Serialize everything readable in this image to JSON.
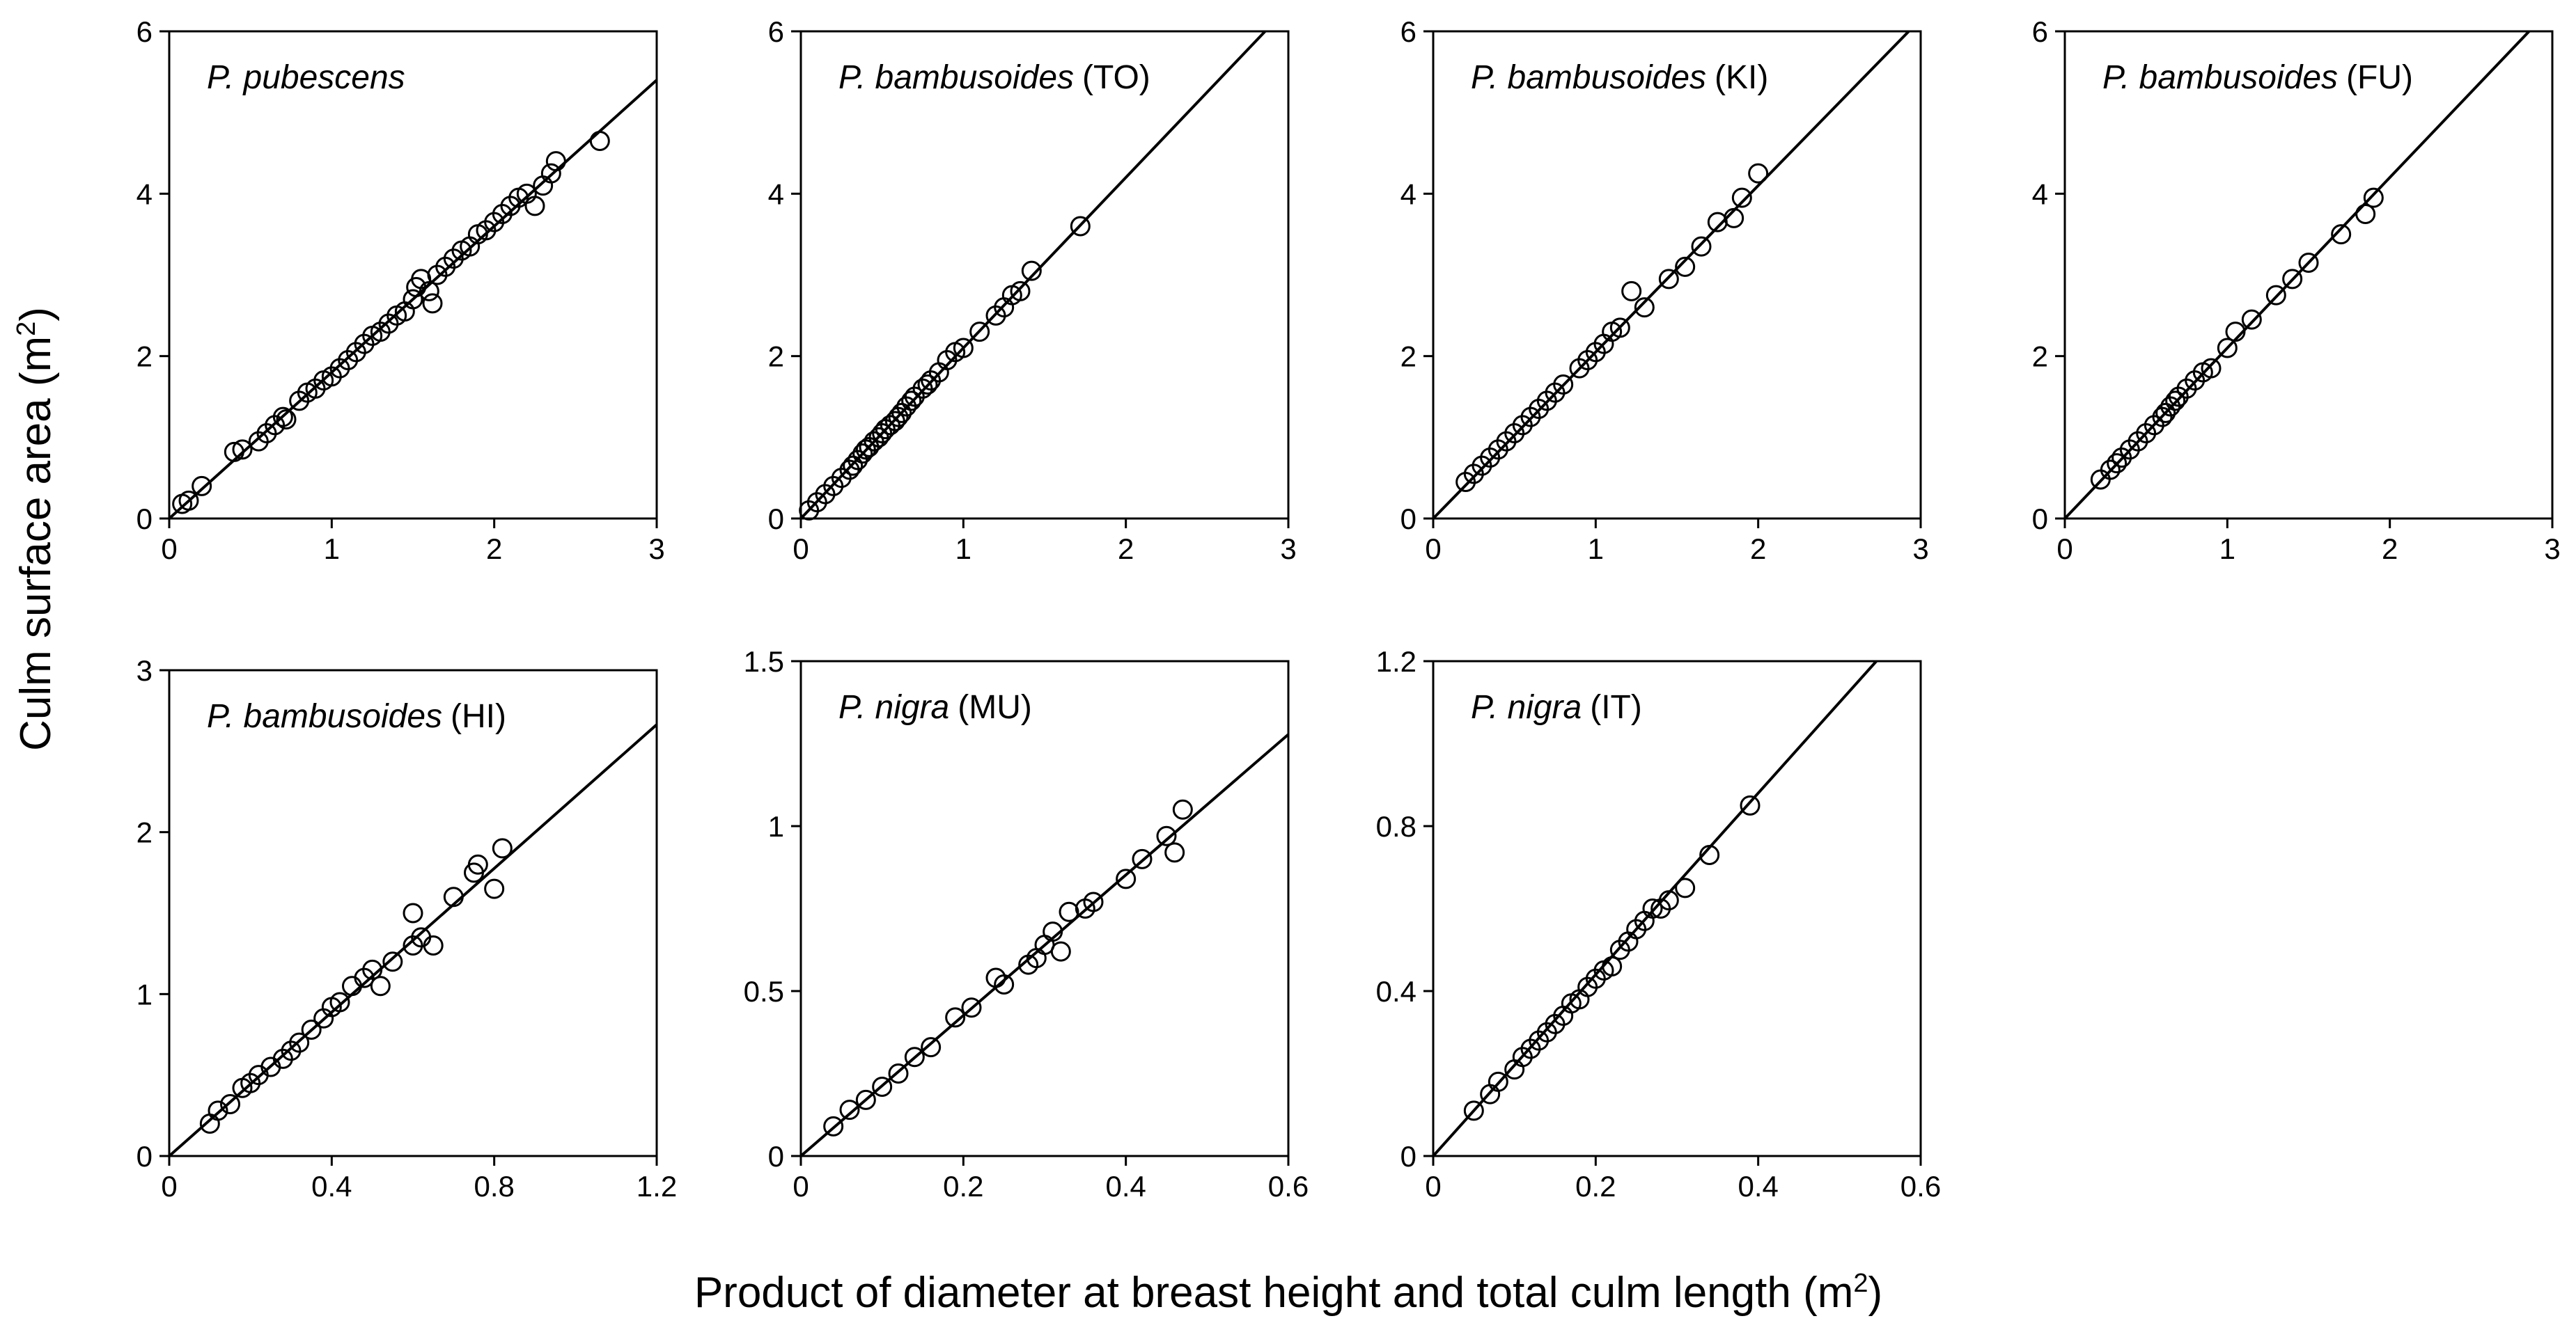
{
  "figure": {
    "ylabel": {
      "text": "Culm surface area (m",
      "sup": "2",
      "close": ")"
    },
    "xlabel": {
      "text": "Product of diameter at breast height and total culm length (m",
      "sup": "2",
      "close": ")"
    }
  },
  "chart_data": [
    {
      "type": "scatter",
      "title": {
        "species": "P. pubescens",
        "site": ""
      },
      "xlim": [
        0,
        3
      ],
      "ylim": [
        0,
        6
      ],
      "xticks": [
        0,
        1,
        2,
        3
      ],
      "yticks": [
        0,
        2,
        4,
        6
      ],
      "xtick_labels": [
        "0",
        "1",
        "2",
        "3"
      ],
      "ytick_labels": [
        "0",
        "2",
        "4",
        "6"
      ],
      "fit_slope": 1.8,
      "points": [
        [
          0.08,
          0.18
        ],
        [
          0.12,
          0.22
        ],
        [
          0.2,
          0.4
        ],
        [
          0.4,
          0.82
        ],
        [
          0.45,
          0.85
        ],
        [
          0.55,
          0.95
        ],
        [
          0.6,
          1.05
        ],
        [
          0.65,
          1.15
        ],
        [
          0.7,
          1.25
        ],
        [
          0.72,
          1.22
        ],
        [
          0.8,
          1.45
        ],
        [
          0.85,
          1.55
        ],
        [
          0.9,
          1.6
        ],
        [
          0.95,
          1.7
        ],
        [
          1.0,
          1.75
        ],
        [
          1.05,
          1.85
        ],
        [
          1.1,
          1.95
        ],
        [
          1.15,
          2.05
        ],
        [
          1.2,
          2.15
        ],
        [
          1.25,
          2.25
        ],
        [
          1.3,
          2.3
        ],
        [
          1.35,
          2.4
        ],
        [
          1.4,
          2.5
        ],
        [
          1.45,
          2.55
        ],
        [
          1.5,
          2.7
        ],
        [
          1.52,
          2.85
        ],
        [
          1.55,
          2.95
        ],
        [
          1.6,
          2.8
        ],
        [
          1.62,
          2.65
        ],
        [
          1.65,
          3.0
        ],
        [
          1.7,
          3.1
        ],
        [
          1.75,
          3.2
        ],
        [
          1.8,
          3.3
        ],
        [
          1.85,
          3.35
        ],
        [
          1.9,
          3.5
        ],
        [
          1.95,
          3.55
        ],
        [
          2.0,
          3.65
        ],
        [
          2.05,
          3.75
        ],
        [
          2.1,
          3.85
        ],
        [
          2.15,
          3.95
        ],
        [
          2.2,
          4.0
        ],
        [
          2.25,
          3.85
        ],
        [
          2.3,
          4.1
        ],
        [
          2.35,
          4.25
        ],
        [
          2.38,
          4.4
        ],
        [
          2.65,
          4.65
        ]
      ]
    },
    {
      "type": "scatter",
      "title": {
        "species": "P. bambusoides",
        "site": "(TO)"
      },
      "xlim": [
        0,
        3
      ],
      "ylim": [
        0,
        6
      ],
      "xticks": [
        0,
        1,
        2,
        3
      ],
      "yticks": [
        0,
        2,
        4,
        6
      ],
      "xtick_labels": [
        "0",
        "1",
        "2",
        "3"
      ],
      "ytick_labels": [
        "0",
        "2",
        "4",
        "6"
      ],
      "fit_slope": 2.1,
      "points": [
        [
          0.05,
          0.1
        ],
        [
          0.1,
          0.2
        ],
        [
          0.15,
          0.3
        ],
        [
          0.2,
          0.4
        ],
        [
          0.25,
          0.5
        ],
        [
          0.3,
          0.6
        ],
        [
          0.32,
          0.65
        ],
        [
          0.35,
          0.72
        ],
        [
          0.38,
          0.8
        ],
        [
          0.4,
          0.85
        ],
        [
          0.42,
          0.88
        ],
        [
          0.45,
          0.95
        ],
        [
          0.48,
          1.0
        ],
        [
          0.5,
          1.05
        ],
        [
          0.52,
          1.1
        ],
        [
          0.55,
          1.15
        ],
        [
          0.58,
          1.2
        ],
        [
          0.6,
          1.25
        ],
        [
          0.62,
          1.3
        ],
        [
          0.65,
          1.38
        ],
        [
          0.68,
          1.45
        ],
        [
          0.7,
          1.5
        ],
        [
          0.75,
          1.6
        ],
        [
          0.78,
          1.65
        ],
        [
          0.8,
          1.7
        ],
        [
          0.85,
          1.8
        ],
        [
          0.9,
          1.95
        ],
        [
          0.95,
          2.05
        ],
        [
          1.0,
          2.1
        ],
        [
          1.1,
          2.3
        ],
        [
          1.2,
          2.5
        ],
        [
          1.25,
          2.6
        ],
        [
          1.3,
          2.75
        ],
        [
          1.35,
          2.8
        ],
        [
          1.42,
          3.05
        ],
        [
          1.72,
          3.6
        ]
      ]
    },
    {
      "type": "scatter",
      "title": {
        "species": "P. bambusoides",
        "site": "(KI)"
      },
      "xlim": [
        0,
        3
      ],
      "ylim": [
        0,
        6
      ],
      "xticks": [
        0,
        1,
        2,
        3
      ],
      "yticks": [
        0,
        2,
        4,
        6
      ],
      "xtick_labels": [
        "0",
        "1",
        "2",
        "3"
      ],
      "ytick_labels": [
        "0",
        "2",
        "4",
        "6"
      ],
      "fit_slope": 2.05,
      "points": [
        [
          0.2,
          0.45
        ],
        [
          0.25,
          0.55
        ],
        [
          0.3,
          0.65
        ],
        [
          0.35,
          0.75
        ],
        [
          0.4,
          0.85
        ],
        [
          0.45,
          0.95
        ],
        [
          0.5,
          1.05
        ],
        [
          0.55,
          1.15
        ],
        [
          0.6,
          1.25
        ],
        [
          0.65,
          1.35
        ],
        [
          0.7,
          1.45
        ],
        [
          0.75,
          1.55
        ],
        [
          0.8,
          1.65
        ],
        [
          0.9,
          1.85
        ],
        [
          0.95,
          1.95
        ],
        [
          1.0,
          2.05
        ],
        [
          1.05,
          2.15
        ],
        [
          1.1,
          2.3
        ],
        [
          1.15,
          2.35
        ],
        [
          1.22,
          2.8
        ],
        [
          1.3,
          2.6
        ],
        [
          1.45,
          2.95
        ],
        [
          1.55,
          3.1
        ],
        [
          1.65,
          3.35
        ],
        [
          1.75,
          3.65
        ],
        [
          1.85,
          3.7
        ],
        [
          1.9,
          3.95
        ],
        [
          2.0,
          4.25
        ]
      ]
    },
    {
      "type": "scatter",
      "title": {
        "species": "P. bambusoides",
        "site": "(FU)"
      },
      "xlim": [
        0,
        3
      ],
      "ylim": [
        0,
        6
      ],
      "xticks": [
        0,
        1,
        2,
        3
      ],
      "yticks": [
        0,
        2,
        4,
        6
      ],
      "xtick_labels": [
        "0",
        "1",
        "2",
        "3"
      ],
      "ytick_labels": [
        "0",
        "2",
        "4",
        "6"
      ],
      "fit_slope": 2.1,
      "points": [
        [
          0.22,
          0.48
        ],
        [
          0.28,
          0.6
        ],
        [
          0.32,
          0.68
        ],
        [
          0.35,
          0.75
        ],
        [
          0.4,
          0.85
        ],
        [
          0.45,
          0.95
        ],
        [
          0.5,
          1.05
        ],
        [
          0.55,
          1.15
        ],
        [
          0.6,
          1.25
        ],
        [
          0.62,
          1.3
        ],
        [
          0.65,
          1.38
        ],
        [
          0.68,
          1.45
        ],
        [
          0.7,
          1.5
        ],
        [
          0.75,
          1.6
        ],
        [
          0.8,
          1.7
        ],
        [
          0.85,
          1.8
        ],
        [
          0.9,
          1.85
        ],
        [
          1.0,
          2.1
        ],
        [
          1.05,
          2.3
        ],
        [
          1.15,
          2.45
        ],
        [
          1.3,
          2.75
        ],
        [
          1.4,
          2.95
        ],
        [
          1.5,
          3.15
        ],
        [
          1.7,
          3.5
        ],
        [
          1.85,
          3.75
        ],
        [
          1.9,
          3.95
        ]
      ]
    },
    {
      "type": "scatter",
      "title": {
        "species": "P. bambusoides",
        "site": "(HI)"
      },
      "xlim": [
        0,
        1.2
      ],
      "ylim": [
        0,
        3
      ],
      "xticks": [
        0,
        0.4,
        0.8,
        1.2
      ],
      "yticks": [
        0,
        1,
        2,
        3
      ],
      "xtick_labels": [
        "0",
        "0.4",
        "0.8",
        "1.2"
      ],
      "ytick_labels": [
        "0",
        "1",
        "2",
        "3"
      ],
      "fit_slope": 2.22,
      "points": [
        [
          0.1,
          0.2
        ],
        [
          0.12,
          0.28
        ],
        [
          0.15,
          0.32
        ],
        [
          0.18,
          0.42
        ],
        [
          0.2,
          0.45
        ],
        [
          0.22,
          0.5
        ],
        [
          0.25,
          0.55
        ],
        [
          0.28,
          0.6
        ],
        [
          0.3,
          0.65
        ],
        [
          0.32,
          0.7
        ],
        [
          0.35,
          0.78
        ],
        [
          0.38,
          0.85
        ],
        [
          0.4,
          0.92
        ],
        [
          0.42,
          0.95
        ],
        [
          0.45,
          1.05
        ],
        [
          0.48,
          1.1
        ],
        [
          0.5,
          1.15
        ],
        [
          0.52,
          1.05
        ],
        [
          0.55,
          1.2
        ],
        [
          0.6,
          1.3
        ],
        [
          0.62,
          1.35
        ],
        [
          0.6,
          1.5
        ],
        [
          0.65,
          1.3
        ],
        [
          0.7,
          1.6
        ],
        [
          0.75,
          1.75
        ],
        [
          0.76,
          1.8
        ],
        [
          0.8,
          1.65
        ],
        [
          0.82,
          1.9
        ]
      ]
    },
    {
      "type": "scatter",
      "title": {
        "species": "P. nigra",
        "site": "(MU)"
      },
      "xlim": [
        0,
        0.6
      ],
      "ylim": [
        0,
        1.5
      ],
      "xticks": [
        0,
        0.2,
        0.4,
        0.6
      ],
      "yticks": [
        0,
        0.5,
        1,
        1.5
      ],
      "xtick_labels": [
        "0",
        "0.2",
        "0.4",
        "0.6"
      ],
      "ytick_labels": [
        "0",
        "0.5",
        "1",
        "1.5"
      ],
      "fit_slope": 2.13,
      "points": [
        [
          0.04,
          0.09
        ],
        [
          0.06,
          0.14
        ],
        [
          0.08,
          0.17
        ],
        [
          0.1,
          0.21
        ],
        [
          0.12,
          0.25
        ],
        [
          0.14,
          0.3
        ],
        [
          0.16,
          0.33
        ],
        [
          0.19,
          0.42
        ],
        [
          0.21,
          0.45
        ],
        [
          0.24,
          0.54
        ],
        [
          0.25,
          0.52
        ],
        [
          0.28,
          0.58
        ],
        [
          0.29,
          0.6
        ],
        [
          0.3,
          0.64
        ],
        [
          0.31,
          0.68
        ],
        [
          0.32,
          0.62
        ],
        [
          0.33,
          0.74
        ],
        [
          0.35,
          0.75
        ],
        [
          0.36,
          0.77
        ],
        [
          0.4,
          0.84
        ],
        [
          0.42,
          0.9
        ],
        [
          0.45,
          0.97
        ],
        [
          0.46,
          0.92
        ],
        [
          0.47,
          1.05
        ]
      ]
    },
    {
      "type": "scatter",
      "title": {
        "species": "P. nigra",
        "site": "(IT)"
      },
      "xlim": [
        0,
        0.6
      ],
      "ylim": [
        0,
        1.2
      ],
      "xticks": [
        0,
        0.2,
        0.4,
        0.6
      ],
      "yticks": [
        0,
        0.4,
        0.8,
        1.2
      ],
      "xtick_labels": [
        "0",
        "0.2",
        "0.4",
        "0.6"
      ],
      "ytick_labels": [
        "0",
        "0.4",
        "0.8",
        "1.2"
      ],
      "fit_slope": 2.2,
      "points": [
        [
          0.05,
          0.11
        ],
        [
          0.07,
          0.15
        ],
        [
          0.08,
          0.18
        ],
        [
          0.1,
          0.21
        ],
        [
          0.11,
          0.24
        ],
        [
          0.12,
          0.26
        ],
        [
          0.13,
          0.28
        ],
        [
          0.14,
          0.3
        ],
        [
          0.15,
          0.32
        ],
        [
          0.16,
          0.34
        ],
        [
          0.17,
          0.37
        ],
        [
          0.18,
          0.38
        ],
        [
          0.19,
          0.41
        ],
        [
          0.2,
          0.43
        ],
        [
          0.21,
          0.45
        ],
        [
          0.22,
          0.46
        ],
        [
          0.23,
          0.5
        ],
        [
          0.24,
          0.52
        ],
        [
          0.25,
          0.55
        ],
        [
          0.26,
          0.57
        ],
        [
          0.27,
          0.6
        ],
        [
          0.28,
          0.6
        ],
        [
          0.29,
          0.62
        ],
        [
          0.31,
          0.65
        ],
        [
          0.34,
          0.73
        ],
        [
          0.39,
          0.85
        ]
      ]
    }
  ]
}
